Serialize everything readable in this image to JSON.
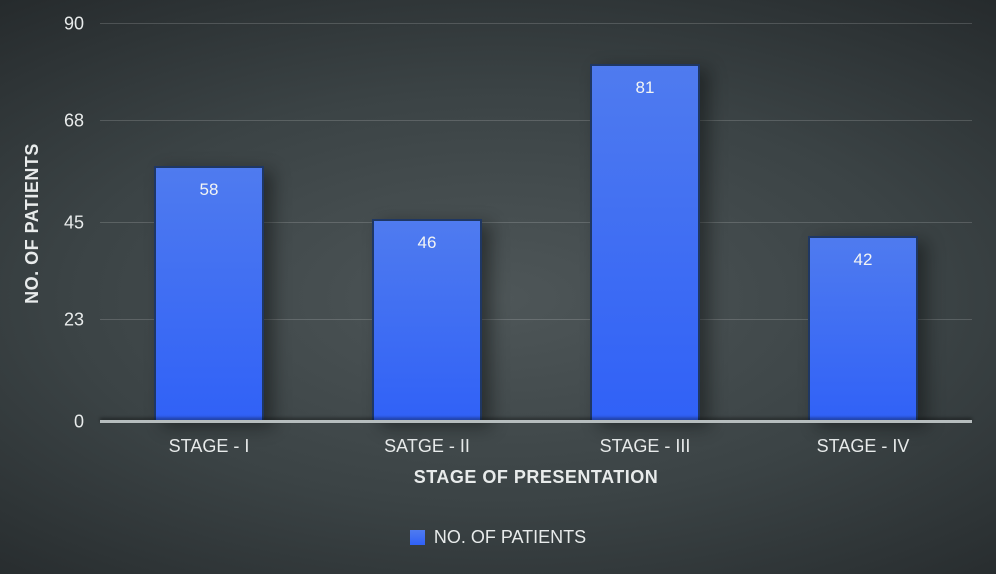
{
  "chart_data": {
    "type": "bar",
    "categories": [
      "STAGE - I",
      "SATGE - II",
      "STAGE - III",
      "STAGE - IV"
    ],
    "values": [
      58,
      46,
      81,
      42
    ],
    "series_name": "NO. OF PATIENTS",
    "xlabel": "STAGE OF PRESENTATION",
    "ylabel": "NO. OF PATIENTS",
    "yticks": [
      0,
      23,
      45,
      68,
      90
    ],
    "ylim": [
      0,
      90
    ],
    "grid": true,
    "legend_position": "bottom",
    "data_labels": true
  },
  "colors": {
    "bar_top": "#4f7bef",
    "bar_bottom": "#3061f7",
    "bar_border": "#1f3763",
    "text": "#e8ebeb",
    "data_label": "#f2f4f4",
    "gridline": "rgba(255,255,255,0.16)",
    "baseline": "#b6bdbe",
    "bg_center": "#4e5658",
    "bg_edge": "#16181a"
  }
}
